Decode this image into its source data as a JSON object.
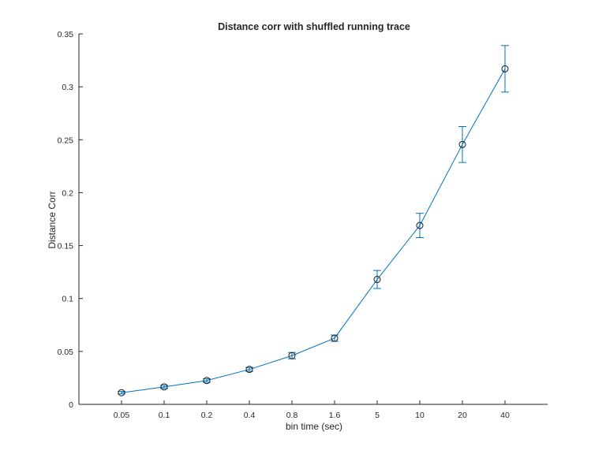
{
  "chart_data": {
    "type": "line",
    "title": "Distance corr with shuffled running trace",
    "xlabel": "bin time (sec)",
    "ylabel": "Distance Corr",
    "categories": [
      "0.05",
      "0.1",
      "0.2",
      "0.4",
      "0.8",
      "1.6",
      "5",
      "10",
      "20",
      "40"
    ],
    "yticks": [
      "0",
      "0.05",
      "0.1",
      "0.15",
      "0.2",
      "0.25",
      "0.3",
      "0.35"
    ],
    "ylim": [
      0,
      0.35
    ],
    "grid": false,
    "series": [
      {
        "values": [
          0.011,
          0.0165,
          0.0225,
          0.033,
          0.046,
          0.0625,
          0.118,
          0.169,
          0.2455,
          0.317
        ],
        "error": [
          0.0012,
          0.0015,
          0.0016,
          0.0018,
          0.003,
          0.003,
          0.0085,
          0.0115,
          0.017,
          0.022
        ],
        "color": "#0072bd",
        "marker": "circle",
        "marker_color": "#1a1a1a"
      }
    ],
    "axis_color": "#262626"
  }
}
